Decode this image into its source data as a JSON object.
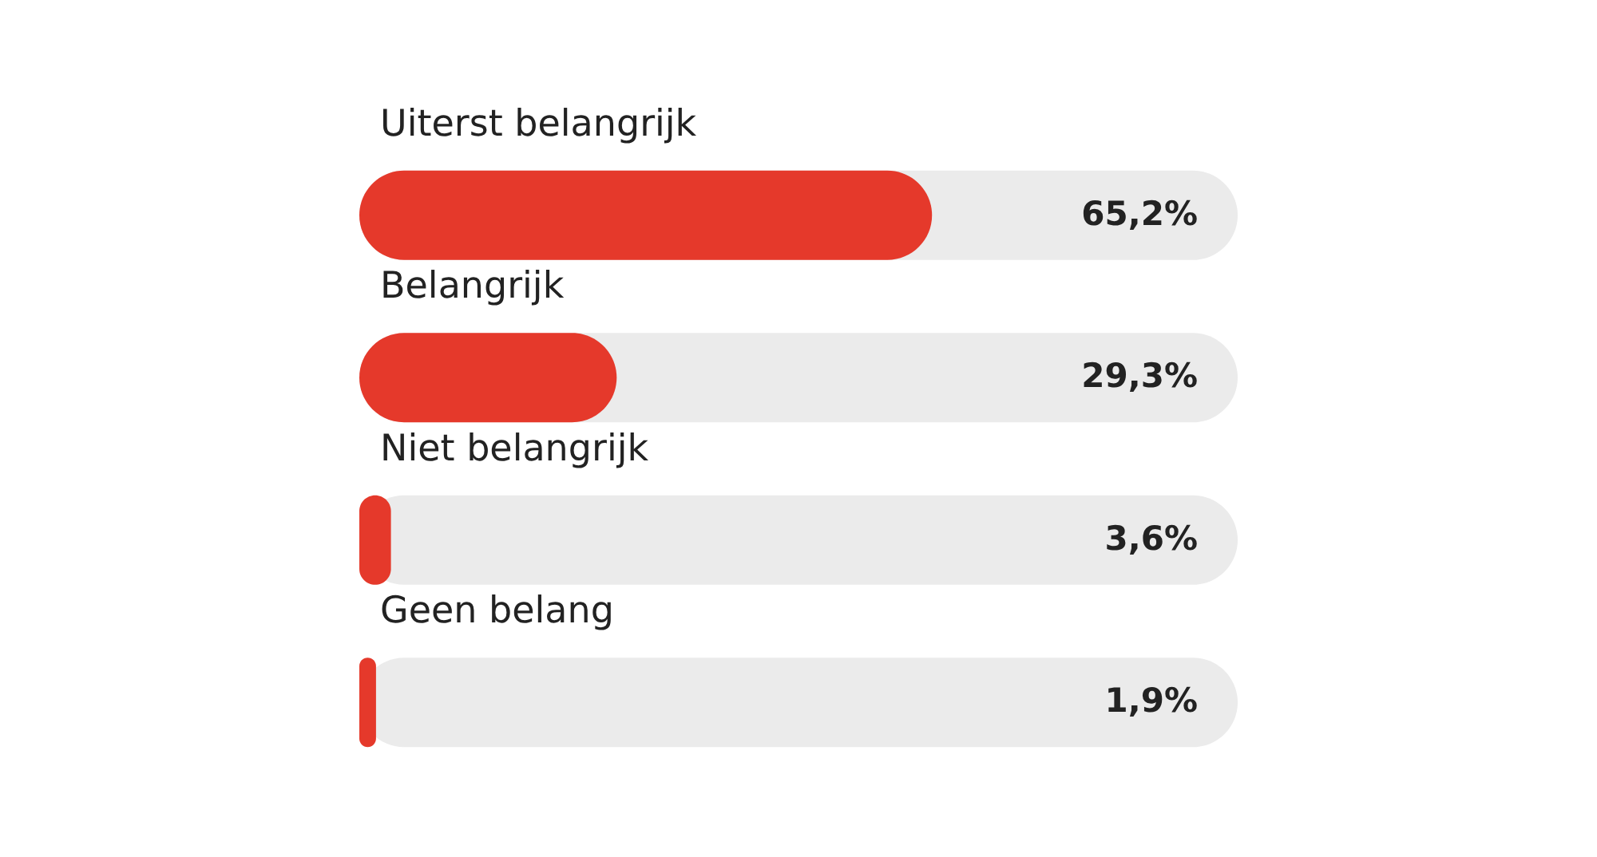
{
  "chart_data": {
    "type": "bar",
    "orientation": "horizontal",
    "categories": [
      "Uiterst belangrijk",
      "Belangrijk",
      "Niet belangrijk",
      "Geen belang"
    ],
    "values": [
      65.2,
      29.3,
      3.6,
      1.9
    ],
    "value_labels": [
      "65,2%",
      "29,3%",
      "3,6%",
      "1,9%"
    ],
    "color": "#e5392b",
    "xlim": [
      0,
      100
    ]
  }
}
